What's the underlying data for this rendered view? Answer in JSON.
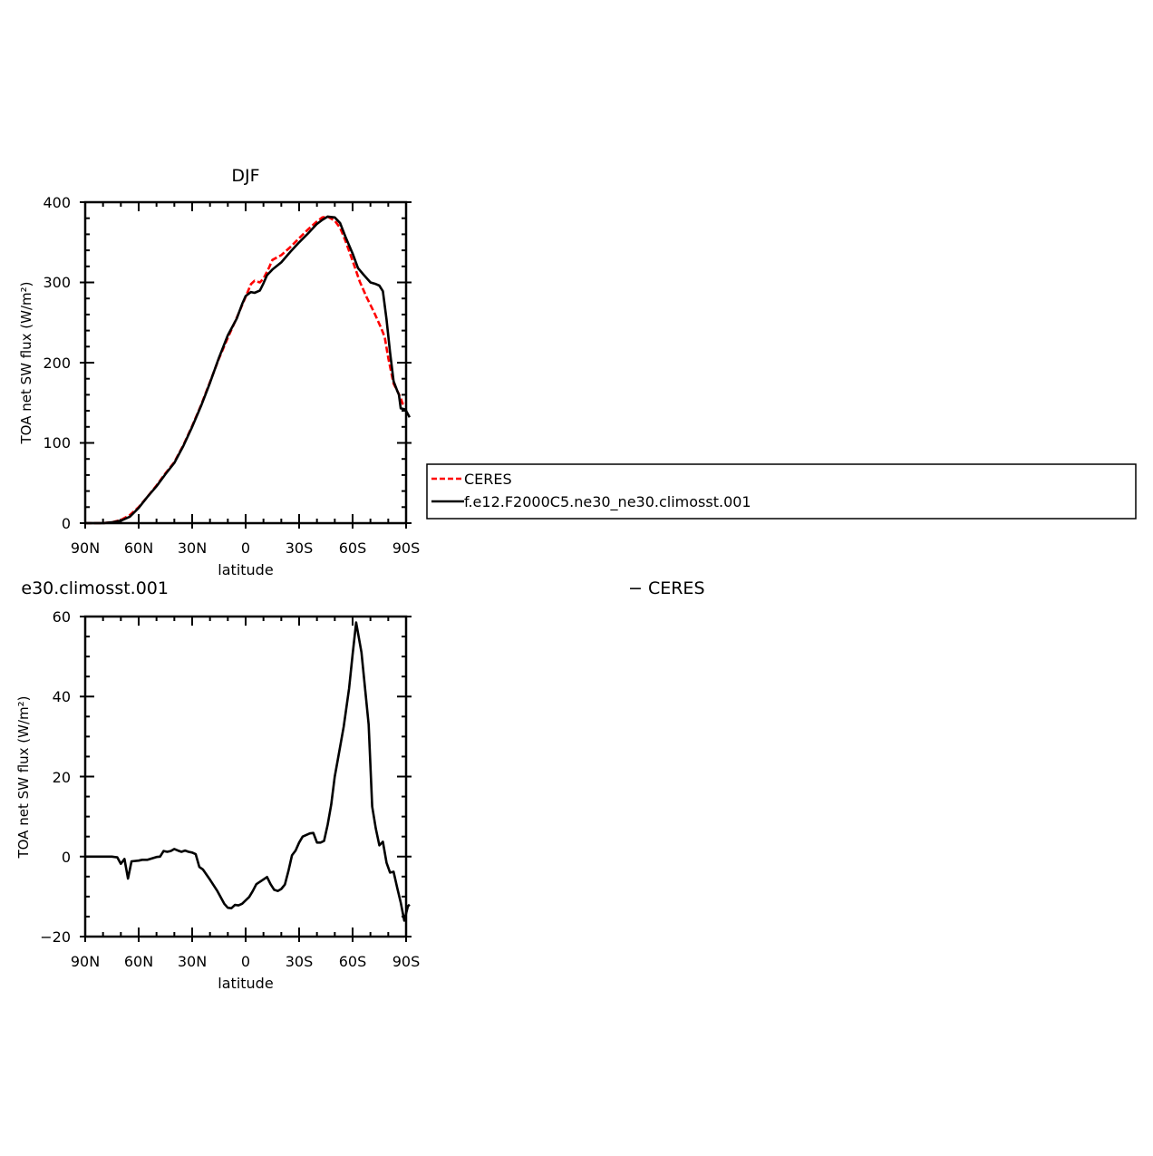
{
  "chart_data": [
    {
      "type": "line",
      "title": "DJF",
      "xlabel": "latitude",
      "ylabel": "TOA net SW flux (W/m²)",
      "xlim": [
        90,
        -90
      ],
      "ylim": [
        0,
        400
      ],
      "x_ticks": [
        "90N",
        "60N",
        "30N",
        "0",
        "30S",
        "60S",
        "90S"
      ],
      "y_ticks": [
        "0",
        "100",
        "200",
        "300",
        "400"
      ],
      "legend": {
        "placement": "right",
        "entries": [
          "CERES",
          "f.e12.F2000C5.ne30_ne30.climosst.001"
        ]
      },
      "series": [
        {
          "name": "CERES",
          "color": "#ff0000",
          "style": "dashed",
          "points": [
            [
              90,
              0
            ],
            [
              85,
              0
            ],
            [
              80,
              0
            ],
            [
              75,
              1
            ],
            [
              70,
              4
            ],
            [
              65,
              10
            ],
            [
              60,
              20
            ],
            [
              55,
              33
            ],
            [
              50,
              47
            ],
            [
              45,
              62
            ],
            [
              40,
              76
            ],
            [
              35,
              97
            ],
            [
              30,
              121
            ],
            [
              25,
              147
            ],
            [
              20,
              176
            ],
            [
              15,
              205
            ],
            [
              10,
              231
            ],
            [
              5,
              256
            ],
            [
              0,
              282
            ],
            [
              -3,
              298
            ],
            [
              -5,
              302
            ],
            [
              -8,
              300
            ],
            [
              -10,
              305
            ],
            [
              -13,
              318
            ],
            [
              -15,
              328
            ],
            [
              -20,
              334
            ],
            [
              -25,
              344
            ],
            [
              -30,
              355
            ],
            [
              -35,
              366
            ],
            [
              -40,
              376
            ],
            [
              -43,
              381
            ],
            [
              -46,
              382
            ],
            [
              -50,
              377
            ],
            [
              -53,
              368
            ],
            [
              -56,
              352
            ],
            [
              -60,
              327
            ],
            [
              -64,
              301
            ],
            [
              -68,
              281
            ],
            [
              -72,
              263
            ],
            [
              -76,
              243
            ],
            [
              -78,
              232
            ],
            [
              -80,
              206
            ],
            [
              -83,
              174
            ],
            [
              -85,
              165
            ],
            [
              -87,
              156
            ],
            [
              -88,
              149
            ],
            [
              -89.5,
              148
            ],
            [
              -90,
              150
            ]
          ]
        },
        {
          "name": "f.e12.F2000C5.ne30_ne30.climosst.001",
          "color": "#000000",
          "style": "solid",
          "points": [
            [
              90,
              0
            ],
            [
              85,
              0
            ],
            [
              80,
              0
            ],
            [
              75,
              1
            ],
            [
              70,
              3
            ],
            [
              65,
              8
            ],
            [
              60,
              19
            ],
            [
              55,
              33
            ],
            [
              50,
              46
            ],
            [
              45,
              61
            ],
            [
              40,
              75
            ],
            [
              35,
              96
            ],
            [
              30,
              120
            ],
            [
              25,
              146
            ],
            [
              20,
              175
            ],
            [
              15,
              206
            ],
            [
              10,
              234
            ],
            [
              5,
              255
            ],
            [
              2,
              273
            ],
            [
              0,
              283
            ],
            [
              -3,
              288
            ],
            [
              -5,
              287
            ],
            [
              -8,
              290
            ],
            [
              -10,
              299
            ],
            [
              -12,
              309
            ],
            [
              -15,
              316
            ],
            [
              -20,
              325
            ],
            [
              -25,
              338
            ],
            [
              -30,
              350
            ],
            [
              -35,
              361
            ],
            [
              -40,
              373
            ],
            [
              -43,
              378
            ],
            [
              -46,
              382
            ],
            [
              -50,
              381
            ],
            [
              -53,
              374
            ],
            [
              -56,
              357
            ],
            [
              -60,
              336
            ],
            [
              -63,
              318
            ],
            [
              -66,
              310
            ],
            [
              -70,
              300
            ],
            [
              -73,
              298
            ],
            [
              -75,
              296
            ],
            [
              -77,
              289
            ],
            [
              -79,
              254
            ],
            [
              -81,
              213
            ],
            [
              -83,
              177
            ],
            [
              -85,
              165
            ],
            [
              -86,
              160
            ],
            [
              -87,
              143
            ],
            [
              -89,
              142
            ],
            [
              -90,
              140
            ],
            [
              -92,
              132
            ]
          ]
        }
      ]
    },
    {
      "type": "line",
      "title": "e30.climosst.001",
      "title_right": "− CERES",
      "xlabel": "latitude",
      "ylabel": "TOA net SW flux (W/m²)",
      "xlim": [
        90,
        -90
      ],
      "ylim": [
        -20,
        60
      ],
      "x_ticks": [
        "90N",
        "60N",
        "30N",
        "0",
        "30S",
        "60S",
        "90S"
      ],
      "y_ticks": [
        "−20",
        "0",
        "20",
        "40",
        "60"
      ],
      "series": [
        {
          "color": "#000000",
          "style": "solid",
          "points": [
            [
              90,
              0
            ],
            [
              85,
              0
            ],
            [
              80,
              0
            ],
            [
              75,
              0
            ],
            [
              72,
              -0.2
            ],
            [
              70,
              -1.8
            ],
            [
              68,
              -0.6
            ],
            [
              66,
              -5.5
            ],
            [
              64,
              -1.2
            ],
            [
              60,
              -1
            ],
            [
              58,
              -0.8
            ],
            [
              55,
              -0.8
            ],
            [
              50,
              -0.1
            ],
            [
              48,
              0
            ],
            [
              46,
              1.4
            ],
            [
              44,
              1.2
            ],
            [
              42,
              1.4
            ],
            [
              40,
              1.9
            ],
            [
              38,
              1.5
            ],
            [
              36,
              1.2
            ],
            [
              34,
              1.5
            ],
            [
              32,
              1.2
            ],
            [
              30,
              1
            ],
            [
              28,
              0.6
            ],
            [
              26,
              -2.6
            ],
            [
              24,
              -3.2
            ],
            [
              20,
              -5.8
            ],
            [
              16,
              -8.5
            ],
            [
              12,
              -11.8
            ],
            [
              10,
              -12.8
            ],
            [
              8,
              -12.9
            ],
            [
              6,
              -12.1
            ],
            [
              4,
              -12.2
            ],
            [
              2,
              -11.8
            ],
            [
              -2,
              -10.1
            ],
            [
              -4,
              -8.6
            ],
            [
              -6,
              -6.9
            ],
            [
              -10,
              -5.7
            ],
            [
              -12,
              -5.1
            ],
            [
              -14,
              -6.9
            ],
            [
              -16,
              -8.3
            ],
            [
              -18,
              -8.6
            ],
            [
              -20,
              -8.1
            ],
            [
              -22,
              -7
            ],
            [
              -24,
              -3.6
            ],
            [
              -26,
              0.3
            ],
            [
              -28,
              1.5
            ],
            [
              -30,
              3.5
            ],
            [
              -32,
              5
            ],
            [
              -34,
              5.4
            ],
            [
              -36,
              5.8
            ],
            [
              -38,
              5.9
            ],
            [
              -40,
              3.5
            ],
            [
              -42,
              3.5
            ],
            [
              -44,
              3.9
            ],
            [
              -46,
              8
            ],
            [
              -48,
              13
            ],
            [
              -50,
              20
            ],
            [
              -52,
              25
            ],
            [
              -55,
              32.5
            ],
            [
              -58,
              42
            ],
            [
              -60,
              50.5
            ],
            [
              -62,
              58.5
            ],
            [
              -65,
              51
            ],
            [
              -69,
              33
            ],
            [
              -71,
              12.5
            ],
            [
              -73,
              7
            ],
            [
              -75,
              2.8
            ],
            [
              -77,
              3.7
            ],
            [
              -79,
              -1.5
            ],
            [
              -81,
              -4
            ],
            [
              -83,
              -3.8
            ],
            [
              -85,
              -7.8
            ],
            [
              -87,
              -11.5
            ],
            [
              -89,
              -16
            ],
            [
              -91,
              -12.4
            ],
            [
              -92,
              -12
            ]
          ]
        }
      ]
    }
  ]
}
